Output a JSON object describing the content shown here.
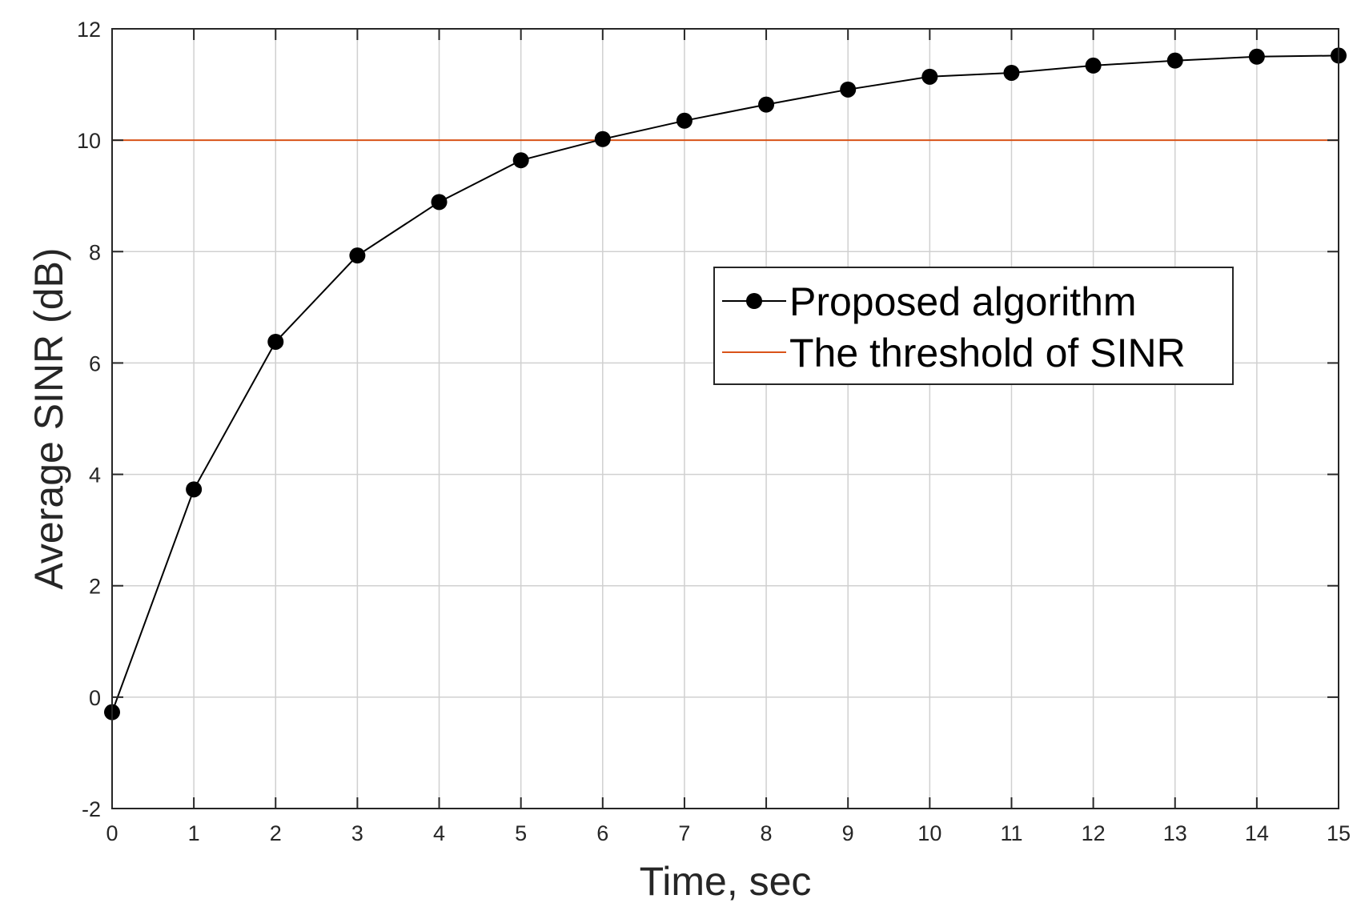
{
  "chart_data": {
    "type": "line",
    "xlabel": "Time, sec",
    "ylabel": "Average SINR (dB)",
    "xlim": [
      0,
      15
    ],
    "ylim": [
      -2,
      12
    ],
    "xticks": [
      0,
      1,
      2,
      3,
      4,
      5,
      6,
      7,
      8,
      9,
      10,
      11,
      12,
      13,
      14,
      15
    ],
    "yticks": [
      -2,
      0,
      2,
      4,
      6,
      8,
      10,
      12
    ],
    "grid": true,
    "legend_position": "upper-right-middle",
    "series": [
      {
        "name": "Proposed algorithm",
        "color": "#000000",
        "marker": "filled-circle",
        "x": [
          0,
          1,
          2,
          3,
          4,
          5,
          6,
          7,
          8,
          9,
          10,
          11,
          12,
          13,
          14,
          15
        ],
        "y": [
          -0.27,
          3.73,
          6.38,
          7.93,
          8.89,
          9.64,
          10.02,
          10.35,
          10.64,
          10.91,
          11.14,
          11.21,
          11.34,
          11.43,
          11.5,
          11.52
        ]
      },
      {
        "name": "The threshold of SINR",
        "color": "#d95319",
        "marker": "none",
        "x": [
          0,
          15
        ],
        "y": [
          10,
          10
        ]
      }
    ]
  }
}
